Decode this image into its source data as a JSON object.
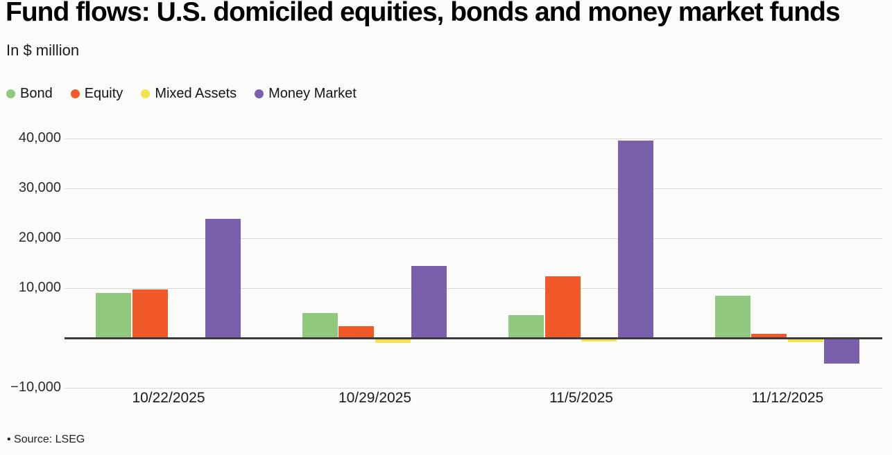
{
  "header": {
    "title": "Fund flows: U.S. domiciled equities, bonds and money market funds",
    "subtitle": "In $ million"
  },
  "footer": {
    "source": "• Source: LSEG"
  },
  "chart_data": {
    "type": "bar",
    "title": "Fund flows: U.S. domiciled equities, bonds and money market funds",
    "subtitle": "In $ million",
    "xlabel": "",
    "ylabel": "In $ million",
    "categories": [
      "10/22/2025",
      "10/29/2025",
      "11/5/2025",
      "11/12/2025"
    ],
    "series": [
      {
        "name": "Bond",
        "color": "#90c87e",
        "values": [
          9000,
          5000,
          4600,
          8500
        ]
      },
      {
        "name": "Equity",
        "color": "#f15a28",
        "values": [
          9700,
          2300,
          12400,
          800
        ]
      },
      {
        "name": "Mixed Assets",
        "color": "#f3e24b",
        "values": [
          -300,
          -1000,
          -700,
          -800
        ]
      },
      {
        "name": "Money Market",
        "color": "#7a5fad",
        "values": [
          23900,
          14500,
          39600,
          -5100
        ]
      }
    ],
    "ylim": [
      -10000,
      44000
    ],
    "yticks": [
      40000,
      30000,
      20000,
      10000,
      -10000
    ],
    "ytick_labels": [
      "40,000",
      "30,000",
      "20,000",
      "10,000",
      "−10,000"
    ],
    "grid": true,
    "legend_position": "top-left",
    "source": "Source: LSEG"
  }
}
